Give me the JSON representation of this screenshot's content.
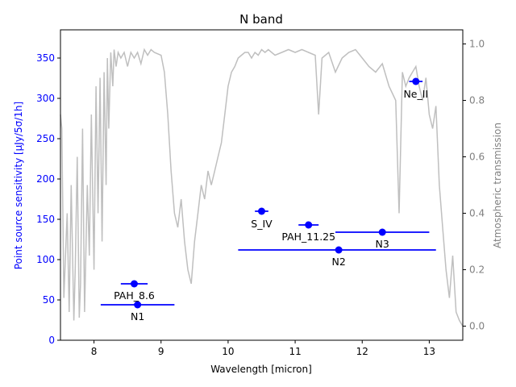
{
  "chart_data": {
    "type": "scatter",
    "title": "N band",
    "xlabel": "Wavelength [micron]",
    "ylabel": "Point source sensitivity [μJy/5σ/1h]",
    "y2label": "Atmospheric transmission",
    "xlim": [
      7.5,
      13.5
    ],
    "ylim": [
      0,
      385
    ],
    "y2lim": [
      -0.05,
      1.05
    ],
    "xticks": [
      "8",
      "9",
      "10",
      "11",
      "12",
      "13"
    ],
    "yticks": [
      "0",
      "50",
      "100",
      "150",
      "200",
      "250",
      "300",
      "350"
    ],
    "y2ticks": [
      "0.0",
      "0.2",
      "0.4",
      "0.6",
      "0.8",
      "1.0"
    ],
    "grid": false,
    "colors": {
      "points": "#0000ff",
      "transmission": "#bfbfbf",
      "y2axis": "#808080"
    },
    "filters": [
      {
        "name": "PAH_8.6",
        "x": 8.6,
        "xmin": 8.4,
        "xmax": 8.8,
        "y": 70
      },
      {
        "name": "N1",
        "x": 8.65,
        "xmin": 8.1,
        "xmax": 9.2,
        "y": 44
      },
      {
        "name": "S_IV",
        "x": 10.5,
        "xmin": 10.4,
        "xmax": 10.6,
        "y": 160
      },
      {
        "name": "PAH_11.25",
        "x": 11.2,
        "xmin": 11.05,
        "xmax": 11.35,
        "y": 143
      },
      {
        "name": "N2",
        "x": 11.65,
        "xmin": 10.15,
        "xmax": 13.1,
        "y": 112
      },
      {
        "name": "N3",
        "x": 12.3,
        "xmin": 11.6,
        "xmax": 13.0,
        "y": 134
      },
      {
        "name": "Ne_II",
        "x": 12.8,
        "xmin": 12.7,
        "xmax": 12.9,
        "y": 321
      }
    ],
    "transmission": {
      "x": [
        7.5,
        7.52,
        7.55,
        7.6,
        7.63,
        7.66,
        7.7,
        7.72,
        7.75,
        7.78,
        7.8,
        7.83,
        7.86,
        7.9,
        7.93,
        7.96,
        8.0,
        8.03,
        8.06,
        8.09,
        8.12,
        8.15,
        8.18,
        8.2,
        8.22,
        8.25,
        8.28,
        8.3,
        8.33,
        8.36,
        8.4,
        8.45,
        8.5,
        8.55,
        8.6,
        8.65,
        8.7,
        8.75,
        8.8,
        8.85,
        8.9,
        9.0,
        9.05,
        9.1,
        9.15,
        9.2,
        9.25,
        9.3,
        9.35,
        9.4,
        9.45,
        9.5,
        9.55,
        9.6,
        9.65,
        9.7,
        9.75,
        9.8,
        9.85,
        9.9,
        9.95,
        10.0,
        10.05,
        10.1,
        10.15,
        10.2,
        10.25,
        10.3,
        10.35,
        10.4,
        10.45,
        10.5,
        10.55,
        10.6,
        10.7,
        10.8,
        10.9,
        11.0,
        11.1,
        11.2,
        11.3,
        11.35,
        11.4,
        11.5,
        11.6,
        11.7,
        11.8,
        11.9,
        12.0,
        12.1,
        12.2,
        12.3,
        12.4,
        12.5,
        12.55,
        12.6,
        12.65,
        12.7,
        12.75,
        12.8,
        12.85,
        12.9,
        12.95,
        13.0,
        13.05,
        13.1,
        13.15,
        13.2,
        13.25,
        13.3,
        13.35,
        13.4,
        13.45,
        13.5
      ],
      "y": [
        0.75,
        0.7,
        0.1,
        0.4,
        0.05,
        0.5,
        0.02,
        0.2,
        0.6,
        0.03,
        0.15,
        0.7,
        0.05,
        0.5,
        0.25,
        0.75,
        0.2,
        0.85,
        0.4,
        0.88,
        0.3,
        0.9,
        0.5,
        0.95,
        0.7,
        0.97,
        0.85,
        0.98,
        0.92,
        0.97,
        0.95,
        0.97,
        0.92,
        0.97,
        0.95,
        0.97,
        0.93,
        0.98,
        0.96,
        0.98,
        0.97,
        0.96,
        0.9,
        0.75,
        0.55,
        0.4,
        0.35,
        0.45,
        0.3,
        0.2,
        0.15,
        0.3,
        0.4,
        0.5,
        0.45,
        0.55,
        0.5,
        0.55,
        0.6,
        0.65,
        0.75,
        0.85,
        0.9,
        0.92,
        0.95,
        0.96,
        0.97,
        0.97,
        0.95,
        0.97,
        0.96,
        0.98,
        0.97,
        0.98,
        0.96,
        0.97,
        0.98,
        0.97,
        0.98,
        0.97,
        0.96,
        0.75,
        0.95,
        0.97,
        0.9,
        0.95,
        0.97,
        0.98,
        0.95,
        0.92,
        0.9,
        0.93,
        0.85,
        0.8,
        0.4,
        0.9,
        0.85,
        0.88,
        0.9,
        0.92,
        0.85,
        0.8,
        0.88,
        0.75,
        0.7,
        0.78,
        0.5,
        0.35,
        0.2,
        0.1,
        0.25,
        0.05,
        0.02,
        0.0
      ]
    }
  }
}
